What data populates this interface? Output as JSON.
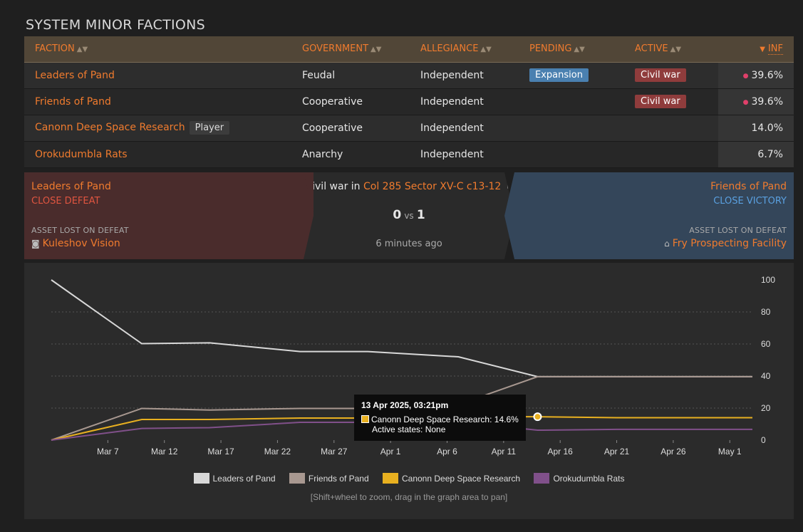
{
  "page_title": "SYSTEM MINOR FACTIONS",
  "table": {
    "headers": {
      "faction": "FACTION",
      "government": "GOVERNMENT",
      "allegiance": "ALLEGIANCE",
      "pending": "PENDING",
      "active": "ACTIVE",
      "inf": "INF"
    },
    "rows": [
      {
        "faction": "Leaders of Pand",
        "government": "Feudal",
        "allegiance": "Independent",
        "pending": "Expansion",
        "active": "Civil war",
        "inf": "39.6%",
        "player": ""
      },
      {
        "faction": "Friends of Pand",
        "government": "Cooperative",
        "allegiance": "Independent",
        "pending": "",
        "active": "Civil war",
        "inf": "39.6%",
        "player": ""
      },
      {
        "faction": "Canonn Deep Space Research",
        "government": "Cooperative",
        "allegiance": "Independent",
        "pending": "",
        "active": "",
        "inf": "14.0%",
        "player": "Player"
      },
      {
        "faction": "Orokudumbla Rats",
        "government": "Anarchy",
        "allegiance": "Independent",
        "pending": "",
        "active": "",
        "inf": "6.7%",
        "player": ""
      }
    ]
  },
  "conflict": {
    "left": {
      "faction": "Leaders of Pand",
      "result": "CLOSE DEFEAT",
      "asset_label": "ASSET LOST ON DEFEAT",
      "asset": "Kuleshov Vision"
    },
    "mid": {
      "prefix": "Civil war in",
      "location": "Col 285 Sector XV-C c13-12",
      "score_left": "0",
      "vs": "vs",
      "score_right": "1",
      "time": "6 minutes ago"
    },
    "right": {
      "faction": "Friends of Pand",
      "result": "CLOSE VICTORY",
      "asset_label": "ASSET LOST ON DEFEAT",
      "asset": "Fry Prospecting Facility"
    },
    "colors": {
      "defeat": "#e05540",
      "victory": "#5aa0e0"
    }
  },
  "tooltip": {
    "title": "13 Apr 2025, 03:21pm",
    "line1": "Canonn Deep Space Research: 14.6%",
    "line2": "Active states: None"
  },
  "legend": [
    "Leaders of Pand",
    "Friends of Pand",
    "Canonn Deep Space Research",
    "Orokudumbla Rats"
  ],
  "hint": "[Shift+wheel to zoom, drag in the graph area to pan]",
  "chart_data": {
    "type": "line",
    "x_ticks": [
      "Mar 7",
      "Mar 12",
      "Mar 17",
      "Mar 22",
      "Mar 27",
      "Apr 1",
      "Apr 6",
      "Apr 11",
      "Apr 16",
      "Apr 21",
      "Apr 26",
      "May 1"
    ],
    "y_ticks": [
      0,
      20,
      40,
      60,
      80,
      100
    ],
    "ylim": [
      0,
      100
    ],
    "xlim": [
      "2025-03-02",
      "2025-05-03"
    ],
    "grid": true,
    "legend_position": "bottom",
    "series": [
      {
        "name": "Leaders of Pand",
        "color": "#d8d8d8",
        "points": [
          [
            "2025-03-02",
            100
          ],
          [
            "2025-03-10",
            60.2
          ],
          [
            "2025-03-16",
            60.7
          ],
          [
            "2025-03-24",
            55.3
          ],
          [
            "2025-03-30",
            55.3
          ],
          [
            "2025-04-07",
            52
          ],
          [
            "2025-04-14",
            39.6
          ],
          [
            "2025-05-03",
            39.6
          ]
        ]
      },
      {
        "name": "Friends of Pand",
        "color": "#a89890",
        "points": [
          [
            "2025-03-02",
            0
          ],
          [
            "2025-03-10",
            19.8
          ],
          [
            "2025-03-16",
            18.8
          ],
          [
            "2025-03-24",
            19.8
          ],
          [
            "2025-03-30",
            19.8
          ],
          [
            "2025-04-07",
            22.2
          ],
          [
            "2025-04-14",
            39.6
          ],
          [
            "2025-05-03",
            39.6
          ]
        ]
      },
      {
        "name": "Canonn Deep Space Research",
        "color": "#e8b020",
        "points": [
          [
            "2025-03-02",
            0
          ],
          [
            "2025-03-10",
            12.9
          ],
          [
            "2025-03-16",
            12.9
          ],
          [
            "2025-03-24",
            13.8
          ],
          [
            "2025-03-30",
            13.8
          ],
          [
            "2025-04-07",
            14.6
          ],
          [
            "2025-04-14",
            14.6
          ],
          [
            "2025-04-21",
            14.0
          ],
          [
            "2025-05-03",
            14.0
          ]
        ]
      },
      {
        "name": "Orokudumbla Rats",
        "color": "#80508a",
        "points": [
          [
            "2025-03-02",
            0
          ],
          [
            "2025-03-10",
            7.3
          ],
          [
            "2025-03-16",
            7.8
          ],
          [
            "2025-03-24",
            11.1
          ],
          [
            "2025-03-30",
            11.1
          ],
          [
            "2025-04-07",
            11.2
          ],
          [
            "2025-04-14",
            6.2
          ],
          [
            "2025-04-21",
            6.7
          ],
          [
            "2025-05-03",
            6.7
          ]
        ]
      }
    ]
  }
}
